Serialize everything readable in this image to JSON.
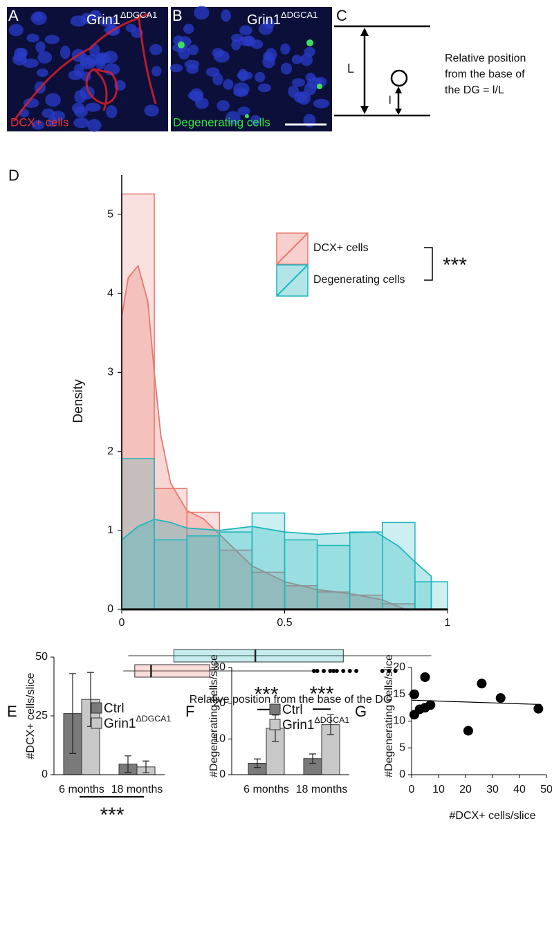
{
  "panels": {
    "A": {
      "label": "A",
      "title": "Grin1",
      "title_sup": "ΔDGCA1",
      "caption": "DCX+ cells"
    },
    "B": {
      "label": "B",
      "title": "Grin1",
      "title_sup": "ΔDGCA1",
      "caption": "Degenerating cells"
    },
    "C": {
      "label": "C",
      "L": "L",
      "l": "l",
      "text": [
        "Relative position",
        "from the base of",
        "the DG = l/L"
      ]
    }
  },
  "chart_data": [
    {
      "type": "histogram",
      "panel": "D",
      "ylabel": "Density",
      "xlabel": "Relative position from the base of the DG",
      "bins": [
        0,
        0.1,
        0.2,
        0.3,
        0.4,
        0.5,
        0.6,
        0.7,
        0.8,
        0.9,
        1.0
      ],
      "xlim": [
        0,
        1
      ],
      "ylim": [
        0,
        5.5
      ],
      "xticks": [
        0,
        0.5,
        1
      ],
      "yticks": [
        0,
        1,
        2,
        3,
        4,
        5
      ],
      "annotation": "***",
      "series": [
        {
          "name": "DCX+ cells",
          "color": "#e8776f",
          "values": [
            5.26,
            1.53,
            1.23,
            0.75,
            0.47,
            0.3,
            0.22,
            0.18,
            0.07,
            0
          ],
          "kde": {
            "x": [
              0,
              0.02,
              0.05,
              0.08,
              0.1,
              0.12,
              0.15,
              0.2,
              0.25,
              0.3,
              0.35,
              0.4,
              0.5,
              0.6,
              0.7,
              0.8,
              0.87
            ],
            "y": [
              3.7,
              4.2,
              4.35,
              3.9,
              3.0,
              2.2,
              1.6,
              1.25,
              1.15,
              0.95,
              0.75,
              0.55,
              0.35,
              0.25,
              0.2,
              0.12,
              0
            ]
          },
          "box": {
            "whisker": [
              0.005,
              0.59
            ],
            "q": [
              0.04,
              0.27
            ],
            "median": 0.09,
            "outliers": [
              0.59,
              0.6,
              0.62,
              0.64,
              0.65,
              0.66,
              0.68,
              0.7,
              0.72,
              0.8,
              0.82,
              0.84
            ]
          }
        },
        {
          "name": "Degenerating cells",
          "color": "#1fb5bd",
          "values": [
            1.91,
            0.88,
            0.93,
            0.98,
            1.22,
            0.88,
            0.81,
            0.98,
            1.1,
            0.35
          ],
          "kde": {
            "x": [
              0,
              0.05,
              0.1,
              0.15,
              0.2,
              0.3,
              0.4,
              0.5,
              0.6,
              0.7,
              0.78,
              0.85,
              0.9,
              0.95
            ],
            "y": [
              0.88,
              1.05,
              1.14,
              1.1,
              1.03,
              1.0,
              1.05,
              0.98,
              0.95,
              0.97,
              0.98,
              0.8,
              0.6,
              0.42
            ]
          },
          "box": {
            "whisker": [
              0.02,
              0.95
            ],
            "q": [
              0.16,
              0.68
            ],
            "median": 0.41,
            "outliers": []
          }
        }
      ]
    },
    {
      "type": "bar",
      "panel": "E",
      "ylabel": "#DCX+ cells/slice",
      "categories": [
        "6 months",
        "18 months"
      ],
      "ylim": [
        0,
        50
      ],
      "yticks": [
        0,
        25,
        50
      ],
      "annotation": "***",
      "series": [
        {
          "name": "Ctrl",
          "color": "#7a7a7a",
          "values": [
            26,
            4.5
          ],
          "errors": [
            17,
            3.5
          ]
        },
        {
          "name": "Grin1",
          "name_sup": "ΔDGCA1",
          "color": "#c8c8c8",
          "values": [
            32,
            3.3
          ],
          "errors": [
            11.5,
            2.5
          ]
        }
      ]
    },
    {
      "type": "bar",
      "panel": "F",
      "ylabel": "#Degenerating cells/slice",
      "categories": [
        "6 months",
        "18 months"
      ],
      "ylim": [
        0,
        30
      ],
      "yticks": [
        0,
        10,
        20,
        30
      ],
      "annotations": [
        "***",
        "***"
      ],
      "series": [
        {
          "name": "Ctrl",
          "color": "#7a7a7a",
          "values": [
            3.2,
            4.5
          ],
          "errors": [
            1.2,
            1.3
          ]
        },
        {
          "name": "Grin1",
          "name_sup": "ΔDGCA1",
          "color": "#c8c8c8",
          "values": [
            13,
            14
          ],
          "errors": [
            3.7,
            2.8
          ]
        }
      ]
    },
    {
      "type": "scatter",
      "panel": "G",
      "xlabel": "#DCX+ cells/slice",
      "ylabel": "#Degenerating cells/slice",
      "xlim": [
        0,
        50
      ],
      "ylim": [
        0,
        20
      ],
      "xticks": [
        0,
        10,
        20,
        30,
        40,
        50
      ],
      "yticks": [
        0,
        5,
        10,
        15,
        20
      ],
      "color": "#000000",
      "x": [
        1,
        1,
        3,
        5,
        5,
        7,
        21,
        26,
        33,
        47
      ],
      "values": [
        11.2,
        15,
        12.2,
        12.5,
        18.2,
        13,
        8.2,
        17,
        14.3,
        12.3
      ],
      "fit": {
        "x": [
          0,
          48
        ],
        "values": [
          13.9,
          13.1
        ]
      }
    }
  ]
}
